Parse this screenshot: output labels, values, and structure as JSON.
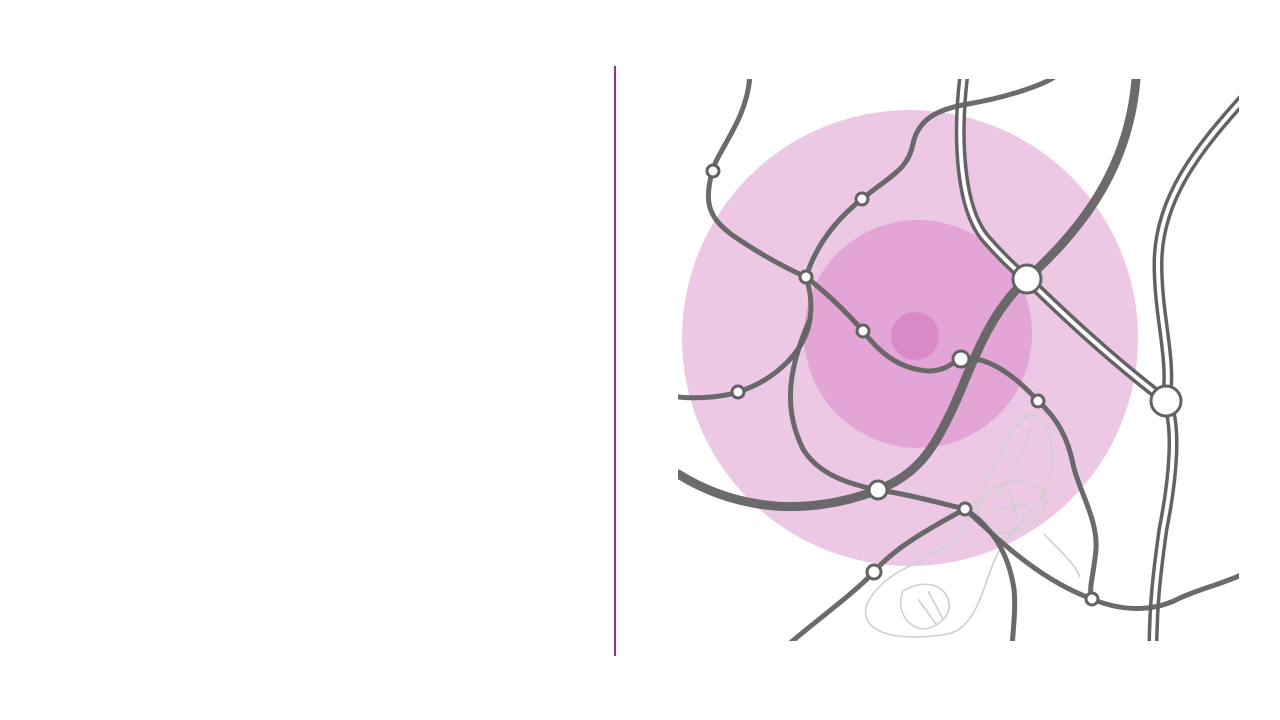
{
  "colors": {
    "background": "#ffffff",
    "divider": "#9b2d8c",
    "radius_outer": "#ecc8e5",
    "radius_middle": "#e2a5d5",
    "radius_inner": "#d889c6",
    "road": "#636363",
    "road_outline": "#ffffff",
    "node_fill": "#ffffff",
    "urban_area_outline": "#cfcfcf"
  },
  "map": {
    "name": "transit-network-catchment-map",
    "layers": [
      "catchment-radius-outer",
      "catchment-radius-middle",
      "catchment-radius-inner",
      "road-network",
      "urban-area",
      "transit-nodes"
    ],
    "node_count": 14,
    "icons": [
      "catchment-center-icon",
      "transit-node-icon",
      "interchange-node-icon"
    ]
  }
}
